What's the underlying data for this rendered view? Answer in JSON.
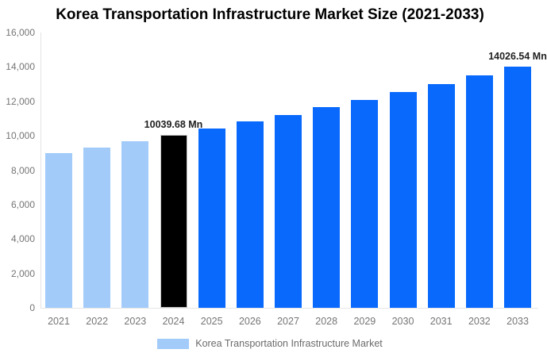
{
  "title": "Korea Transportation Infrastructure Market Size (2021-2033)",
  "legend": {
    "label": "Korea Transportation Infrastructure Market",
    "swatch_color": "#A2CBF9"
  },
  "colors": {
    "historical_bar": "#A2CBF9",
    "highlight_bar": "#000000",
    "forecast_bar": "#0969FD",
    "highlight_bar_border": "#c9c9c9",
    "axis_line": "#e3e3e3",
    "baseline": "#e6e6e6",
    "tick_text": "#757575",
    "value_label_text": "#1f1f1f",
    "title_text": "#000000",
    "legend_text": "#6b6b6b",
    "background": "#ffffff"
  },
  "chart_data": {
    "type": "bar",
    "title": "Korea Transportation Infrastructure Market Size (2021-2033)",
    "xlabel": "",
    "ylabel": "",
    "categories": [
      "2021",
      "2022",
      "2023",
      "2024",
      "2025",
      "2026",
      "2027",
      "2028",
      "2029",
      "2030",
      "2031",
      "2032",
      "2033"
    ],
    "values": [
      8980,
      9320,
      9673,
      10039.68,
      10420,
      10815,
      11224,
      11649,
      12091,
      12549,
      13024,
      13517,
      14026.54
    ],
    "bar_colors": [
      "#A2CBF9",
      "#A2CBF9",
      "#A2CBF9",
      "#000000",
      "#0969FD",
      "#0969FD",
      "#0969FD",
      "#0969FD",
      "#0969FD",
      "#0969FD",
      "#0969FD",
      "#0969FD",
      "#0969FD"
    ],
    "value_labels": {
      "2024": "10039.68 Mn",
      "2033": "14026.54 Mn"
    },
    "unit": "Mn",
    "ylim": [
      0,
      16000
    ],
    "yticks": [
      {
        "value": 16000,
        "label": "16,000"
      },
      {
        "value": 14000,
        "label": "14,000"
      },
      {
        "value": 12000,
        "label": "12,000"
      },
      {
        "value": 10000,
        "label": "10,000"
      },
      {
        "value": 8000,
        "label": "8,000"
      },
      {
        "value": 6000,
        "label": "6,000"
      },
      {
        "value": 4000,
        "label": "4,000"
      },
      {
        "value": 2000,
        "label": "2,000"
      },
      {
        "value": 0,
        "label": "0"
      }
    ],
    "grid": false,
    "legend_position": "bottom",
    "legend_entries": [
      "Korea Transportation Infrastructure Market"
    ]
  }
}
